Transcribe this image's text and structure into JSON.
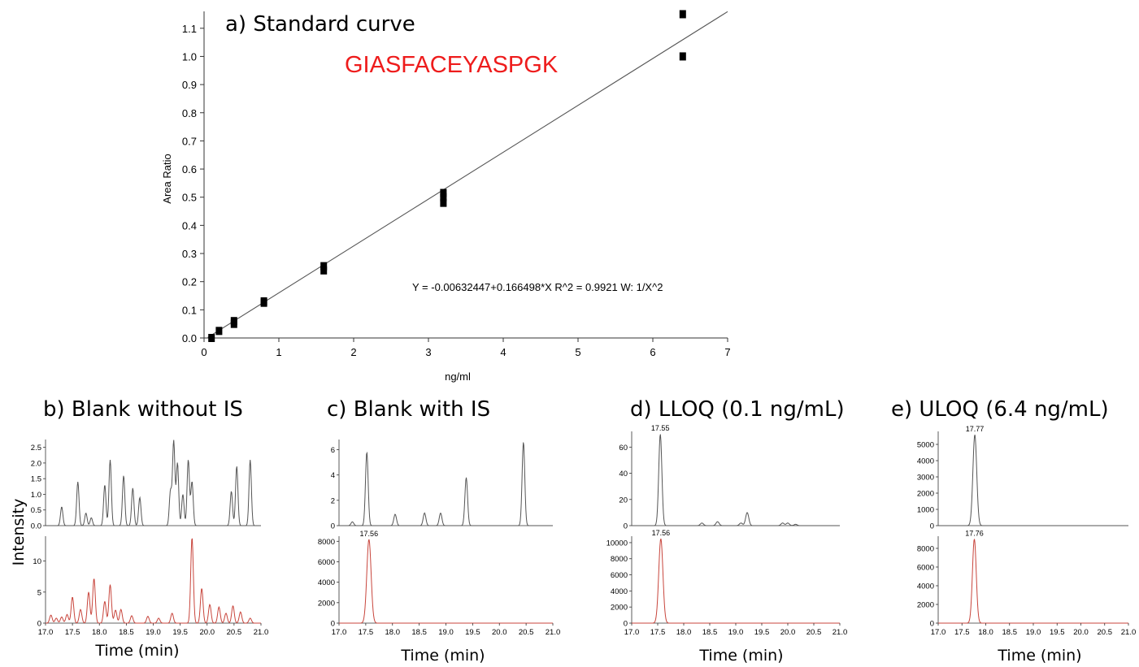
{
  "chart_data": [
    {
      "type": "scatter",
      "panel_title": "a) Standard curve",
      "peptide_label": "GIASFACEYASPGK",
      "equation": "Y = -0.00632447+0.166498*X   R^2 = 0.9921   W: 1/X^2",
      "xlabel": "ng/ml",
      "ylabel": "Area Ratio",
      "xlim": [
        0,
        7
      ],
      "ylim": [
        0,
        1.16
      ],
      "x_ticks": [
        "0",
        "1",
        "2",
        "3",
        "4",
        "5",
        "6",
        "7"
      ],
      "y_ticks": [
        "0.0",
        "0.1",
        "0.2",
        "0.3",
        "0.4",
        "0.5",
        "0.6",
        "0.7",
        "0.8",
        "0.9",
        "1.0",
        "1.1"
      ],
      "points": [
        {
          "x": 0.1,
          "y": 0.0
        },
        {
          "x": 0.2,
          "y": 0.025
        },
        {
          "x": 0.4,
          "y": 0.05
        },
        {
          "x": 0.4,
          "y": 0.06
        },
        {
          "x": 0.8,
          "y": 0.125
        },
        {
          "x": 0.8,
          "y": 0.13
        },
        {
          "x": 1.6,
          "y": 0.24
        },
        {
          "x": 1.6,
          "y": 0.255
        },
        {
          "x": 3.2,
          "y": 0.48
        },
        {
          "x": 3.2,
          "y": 0.5
        },
        {
          "x": 3.2,
          "y": 0.515
        },
        {
          "x": 6.4,
          "y": 1.0
        },
        {
          "x": 6.4,
          "y": 1.15
        }
      ],
      "fit": {
        "intercept": -0.00632447,
        "slope": 0.166498,
        "x_range": [
          0.05,
          7.0
        ]
      }
    },
    {
      "type": "line",
      "panel_title": "b) Blank without IS",
      "xlim": [
        17.0,
        21.0
      ],
      "x_ticks": [
        "17.0",
        "17.5",
        "18.0",
        "18.5",
        "19.0",
        "19.5",
        "20.0",
        "20.5",
        "21.0"
      ],
      "xlabel": "Time (min)",
      "ylabel": "Intensity",
      "top": {
        "ylim": [
          0,
          2.75
        ],
        "y_ticks": [
          "0.0",
          "0.5",
          "1.0",
          "1.5",
          "2.0",
          "2.5"
        ],
        "peaks": [
          [
            17.3,
            0.6
          ],
          [
            17.6,
            1.4
          ],
          [
            17.75,
            0.4
          ],
          [
            17.85,
            0.25
          ],
          [
            18.1,
            1.3
          ],
          [
            18.2,
            2.1
          ],
          [
            18.45,
            1.6
          ],
          [
            18.62,
            1.2
          ],
          [
            18.75,
            0.9
          ],
          [
            19.32,
            1.1
          ],
          [
            19.38,
            2.7
          ],
          [
            19.45,
            2.0
          ],
          [
            19.55,
            1.0
          ],
          [
            19.65,
            2.1
          ],
          [
            19.72,
            1.4
          ],
          [
            20.45,
            1.1
          ],
          [
            20.55,
            1.9
          ],
          [
            20.8,
            2.1
          ]
        ],
        "peak_width": 0.022
      },
      "bottom": {
        "ylim": [
          0,
          14
        ],
        "y_ticks": [
          "0",
          "5",
          "10"
        ],
        "peaks": [
          [
            17.1,
            1.3
          ],
          [
            17.2,
            0.8
          ],
          [
            17.3,
            1.0
          ],
          [
            17.4,
            1.4
          ],
          [
            17.5,
            4.2
          ],
          [
            17.65,
            2.2
          ],
          [
            17.8,
            5.0
          ],
          [
            17.9,
            7.2
          ],
          [
            18.1,
            3.5
          ],
          [
            18.2,
            6.2
          ],
          [
            18.3,
            2.1
          ],
          [
            18.4,
            2.2
          ],
          [
            18.6,
            1.2
          ],
          [
            18.9,
            1.1
          ],
          [
            19.1,
            0.8
          ],
          [
            19.35,
            1.6
          ],
          [
            19.72,
            13.8
          ],
          [
            19.9,
            5.6
          ],
          [
            20.05,
            3.0
          ],
          [
            20.22,
            2.6
          ],
          [
            20.35,
            1.6
          ],
          [
            20.48,
            2.8
          ],
          [
            20.62,
            1.8
          ],
          [
            20.8,
            0.8
          ]
        ],
        "peak_width": 0.024
      }
    },
    {
      "type": "line",
      "panel_title": "c) Blank with IS",
      "xlim": [
        17.0,
        21.0
      ],
      "x_ticks": [
        "17.0",
        "17.5",
        "18.0",
        "18.5",
        "19.0",
        "19.5",
        "20.0",
        "20.5",
        "21.0"
      ],
      "xlabel": "Time (min)",
      "top": {
        "ylim": [
          0,
          6.8
        ],
        "y_ticks": [
          "0",
          "2",
          "4",
          "6"
        ],
        "peaks": [
          [
            17.25,
            0.3
          ],
          [
            17.52,
            5.8
          ],
          [
            18.05,
            0.9
          ],
          [
            18.6,
            1.0
          ],
          [
            18.9,
            1.0
          ],
          [
            19.38,
            3.8
          ],
          [
            20.45,
            6.6
          ]
        ],
        "peak_width": 0.025
      },
      "bottom": {
        "ylim": [
          0,
          8500
        ],
        "y_ticks": [
          "0",
          "2000",
          "4000",
          "6000",
          "8000"
        ],
        "peaks": [
          [
            17.56,
            8200
          ]
        ],
        "peak_width": 0.04,
        "peak_label": "17.56"
      }
    },
    {
      "type": "line",
      "panel_title": "d) LLOQ (0.1 ng/mL)",
      "xlim": [
        17.0,
        21.0
      ],
      "x_ticks": [
        "17.0",
        "17.5",
        "18.0",
        "18.5",
        "19.0",
        "19.5",
        "20.0",
        "20.5",
        "21.0"
      ],
      "xlabel": "Time (min)",
      "top": {
        "ylim": [
          0,
          72
        ],
        "y_ticks": [
          "0",
          "20",
          "40",
          "60"
        ],
        "peaks": [
          [
            17.55,
            70
          ],
          [
            18.35,
            2
          ],
          [
            18.65,
            3
          ],
          [
            19.1,
            2
          ],
          [
            19.22,
            10
          ],
          [
            19.9,
            2
          ],
          [
            20.0,
            2
          ],
          [
            20.15,
            1
          ]
        ],
        "peak_width": 0.03,
        "peak_label": "17.55"
      },
      "bottom": {
        "ylim": [
          0,
          10800
        ],
        "y_ticks": [
          "0",
          "2000",
          "4000",
          "6000",
          "8000",
          "10000"
        ],
        "peaks": [
          [
            17.56,
            10500
          ]
        ],
        "peak_width": 0.04,
        "peak_label": "17.56"
      }
    },
    {
      "type": "line",
      "panel_title": "e) ULOQ (6.4 ng/mL)",
      "xlim": [
        17.0,
        21.0
      ],
      "x_ticks": [
        "17.0",
        "17.5",
        "18.0",
        "18.5",
        "19.0",
        "19.5",
        "20.0",
        "20.5",
        "21.0"
      ],
      "xlabel": "Time (min)",
      "top": {
        "ylim": [
          0,
          5800
        ],
        "y_ticks": [
          "0",
          "1000",
          "2000",
          "3000",
          "4000",
          "5000"
        ],
        "peaks": [
          [
            17.77,
            5600
          ]
        ],
        "peak_width": 0.04,
        "peak_label": "17.77"
      },
      "bottom": {
        "ylim": [
          0,
          9300
        ],
        "y_ticks": [
          "0",
          "2000",
          "4000",
          "6000",
          "8000"
        ],
        "peaks": [
          [
            17.76,
            9000
          ]
        ],
        "peak_width": 0.04,
        "peak_label": "17.76"
      }
    }
  ],
  "colors": {
    "top_trace": "#555555",
    "bottom_trace": "#c8453c",
    "peptide_label": "#ee1c1c",
    "marker": "#000000",
    "axis": "#333333"
  }
}
